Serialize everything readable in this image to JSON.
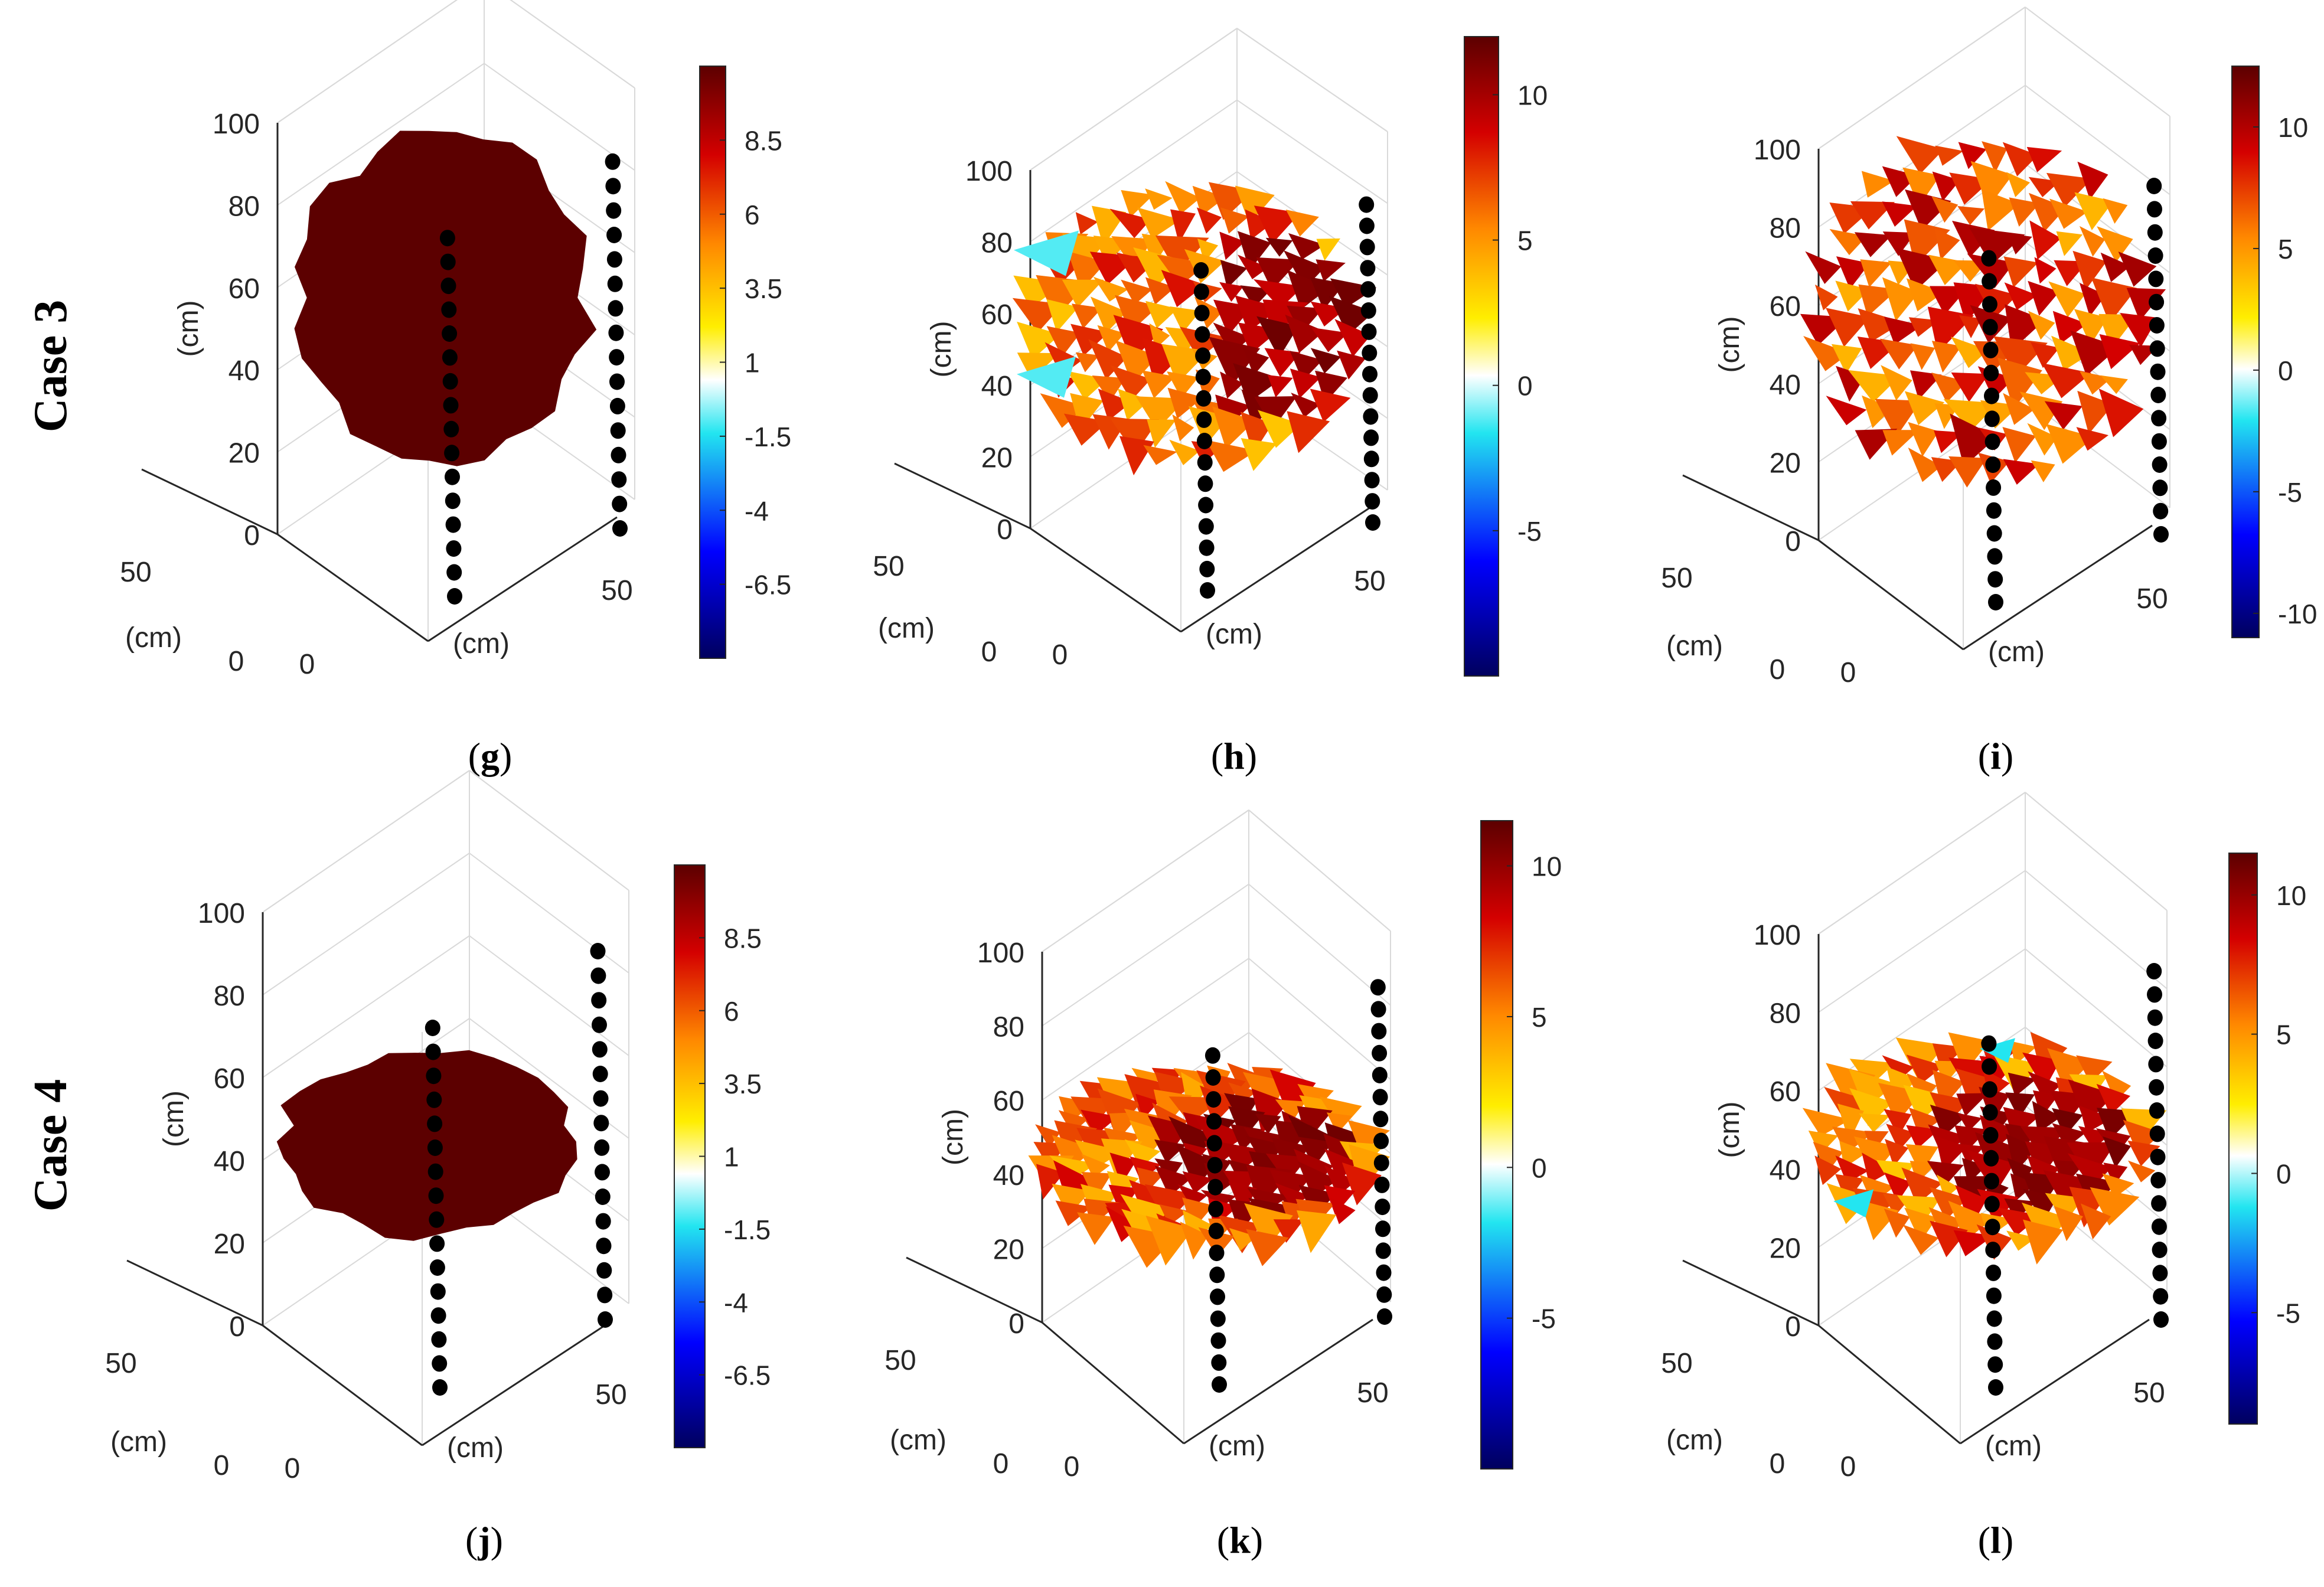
{
  "figure": {
    "row_labels": [
      "Case 3",
      "Case 4"
    ],
    "colormap": "jet-with-white-center",
    "colors": {
      "dark_red": "#5c0000",
      "red": "#d40000",
      "orange": "#ff8800",
      "yellow": "#ffee00",
      "white": "#ffffff",
      "cyan": "#22e5f0",
      "blue": "#0000ff",
      "dark_blue": "#00005e",
      "electrode": "#000000",
      "grid": "#d9d9d9"
    }
  },
  "chart_data": [
    {
      "panel": "g",
      "case": "Case 3",
      "type": "3d-surface",
      "caption": "g",
      "zlabel": "(cm)",
      "xlabel": "(cm)",
      "ylabel": "(cm)",
      "z_ticks": [
        "0",
        "20",
        "40",
        "60",
        "80",
        "100"
      ],
      "x_ticks": [
        "0",
        "50"
      ],
      "y_ticks": [
        "0",
        "50"
      ],
      "colorbar_ticks": [
        "8.5",
        "6",
        "3.5",
        "1",
        "-1.5",
        "-4",
        "-6.5"
      ],
      "colorbar_range": [
        -9,
        11
      ],
      "z_range": [
        0,
        100
      ],
      "z_extent": [
        18,
        97
      ],
      "value_mode": "uniform",
      "value": 11,
      "electrode_columns": 2
    },
    {
      "panel": "h",
      "case": "Case 3",
      "type": "3d-surface",
      "caption": "h",
      "zlabel": "(cm)",
      "xlabel": "(cm)",
      "ylabel": "(cm)",
      "z_ticks": [
        "0",
        "20",
        "40",
        "60",
        "80",
        "100"
      ],
      "x_ticks": [
        "0",
        "50"
      ],
      "y_ticks": [
        "0",
        "50"
      ],
      "colorbar_ticks": [
        "10",
        "5",
        "0",
        "-5"
      ],
      "colorbar_range": [
        -10,
        12
      ],
      "z_range": [
        0,
        100
      ],
      "z_extent": [
        18,
        95
      ],
      "value_mode": "mixed-with-core-and-cyan",
      "electrode_columns": 2
    },
    {
      "panel": "i",
      "case": "Case 3",
      "type": "3d-surface",
      "caption": "i",
      "zlabel": "(cm)",
      "xlabel": "(cm)",
      "ylabel": "(cm)",
      "z_ticks": [
        "0",
        "20",
        "40",
        "60",
        "80",
        "100"
      ],
      "x_ticks": [
        "0",
        "50"
      ],
      "y_ticks": [
        "0",
        "50"
      ],
      "colorbar_ticks": [
        "10",
        "5",
        "0",
        "-5",
        "-10"
      ],
      "colorbar_range": [
        -11,
        12.5
      ],
      "z_range": [
        0,
        100
      ],
      "z_extent": [
        15,
        102
      ],
      "value_mode": "mixed-warm",
      "electrode_columns": 2
    },
    {
      "panel": "j",
      "case": "Case 4",
      "type": "3d-surface",
      "caption": "j",
      "zlabel": "(cm)",
      "xlabel": "(cm)",
      "ylabel": "(cm)",
      "z_ticks": [
        "0",
        "20",
        "40",
        "60",
        "80",
        "100"
      ],
      "x_ticks": [
        "0",
        "50"
      ],
      "y_ticks": [
        "0",
        "50"
      ],
      "colorbar_ticks": [
        "8.5",
        "6",
        "3.5",
        "1",
        "-1.5",
        "-4",
        "-6.5"
      ],
      "colorbar_range": [
        -9,
        11
      ],
      "z_range": [
        0,
        100
      ],
      "z_extent": [
        22,
        67
      ],
      "value_mode": "uniform",
      "value": 11,
      "electrode_columns": 2
    },
    {
      "panel": "k",
      "case": "Case 4",
      "type": "3d-surface",
      "caption": "k",
      "zlabel": "(cm)",
      "xlabel": "(cm)",
      "ylabel": "(cm)",
      "z_ticks": [
        "0",
        "20",
        "40",
        "60",
        "80",
        "100"
      ],
      "x_ticks": [
        "0",
        "50"
      ],
      "y_ticks": [
        "0",
        "50"
      ],
      "colorbar_ticks": [
        "10",
        "5",
        "0",
        "-5"
      ],
      "colorbar_range": [
        -10,
        11.5
      ],
      "z_range": [
        0,
        100
      ],
      "z_extent": [
        20,
        68
      ],
      "value_mode": "core-hot",
      "electrode_columns": 2
    },
    {
      "panel": "l",
      "case": "Case 4",
      "type": "3d-surface",
      "caption": "l",
      "zlabel": "(cm)",
      "xlabel": "(cm)",
      "ylabel": "(cm)",
      "z_ticks": [
        "0",
        "20",
        "40",
        "60",
        "80",
        "100"
      ],
      "x_ticks": [
        "0",
        "50"
      ],
      "y_ticks": [
        "0",
        "50"
      ],
      "colorbar_ticks": [
        "10",
        "5",
        "0",
        "-5"
      ],
      "colorbar_range": [
        -9,
        11.5
      ],
      "z_range": [
        0,
        100
      ],
      "z_extent": [
        20,
        72
      ],
      "value_mode": "core-hot-with-cyan",
      "electrode_columns": 2
    }
  ]
}
